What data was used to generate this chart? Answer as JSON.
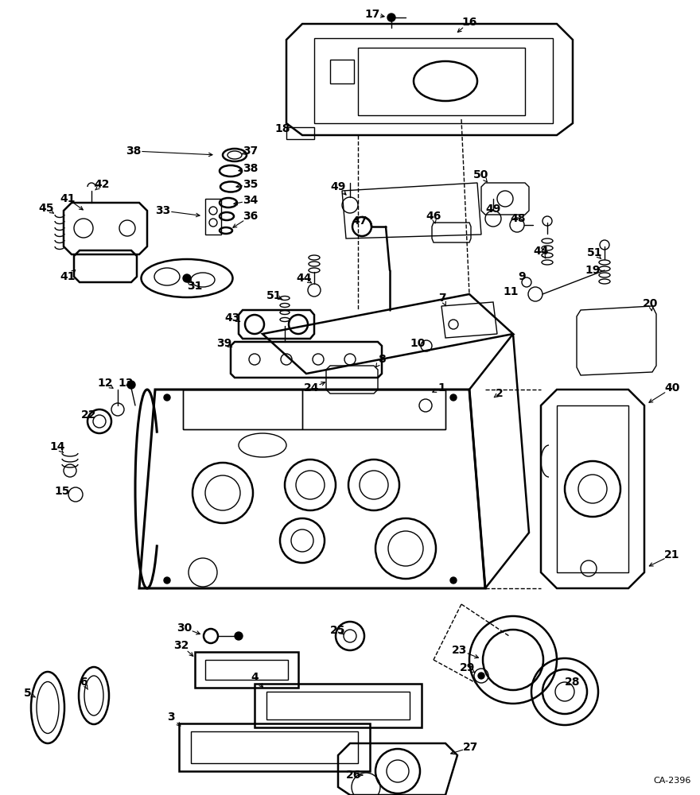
{
  "background_color": "#ffffff",
  "watermark": "CA-2396",
  "line_color": "#000000",
  "lw_main": 1.8,
  "lw_thin": 1.0,
  "lw_thick": 2.2,
  "font_size_label": 10,
  "font_size_wm": 8
}
